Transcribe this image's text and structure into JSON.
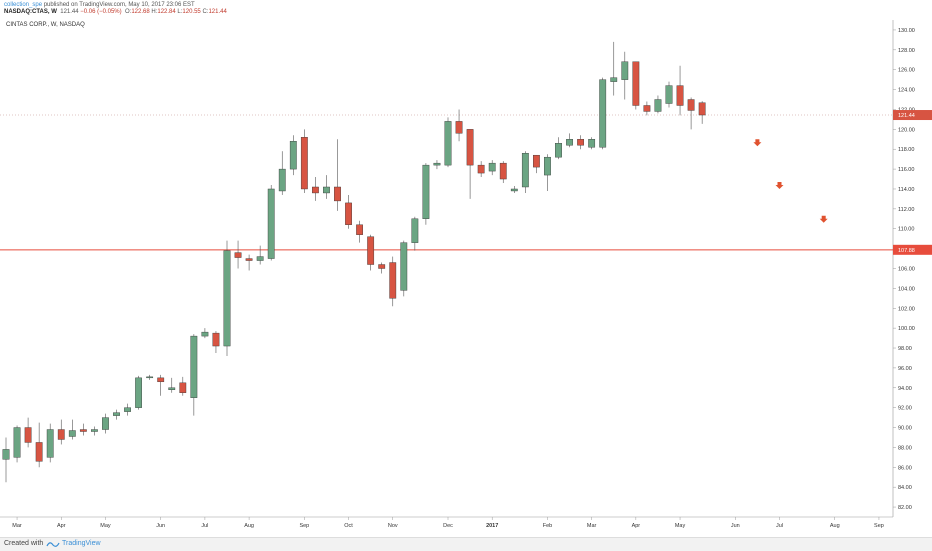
{
  "header": {
    "author": "collection_spe",
    "published": "published on TradingView.com, May 10, 2017 23:06 EST",
    "symbol": "NASDAQ:CTAS, W",
    "last": "121.44",
    "change": "−0.06 (−0.05%)",
    "o_label": "O:",
    "o": "122.68",
    "h_label": "H:",
    "h": "122.84",
    "l_label": "L:",
    "l": "120.55",
    "c_label": "C:",
    "c": "121.44"
  },
  "chart_title": "CINTAS CORP., W, NASDAQ",
  "footer": {
    "created": "Created with",
    "brand": "TradingView"
  },
  "colors": {
    "up": "#6ba583",
    "down": "#d75442",
    "hline": "#e74c3c",
    "priceline": "#d5b4b0",
    "axis": "#999999",
    "arrow": "#e0522f"
  },
  "chart_data": {
    "type": "candlestick",
    "title": "CINTAS CORP., W, NASDAQ",
    "ylim": [
      81.0,
      131.0
    ],
    "y_ticks": [
      "82.00",
      "84.00",
      "86.00",
      "88.00",
      "90.00",
      "92.00",
      "94.00",
      "96.00",
      "98.00",
      "100.00",
      "102.00",
      "104.00",
      "106.00",
      "108.00",
      "110.00",
      "112.00",
      "114.00",
      "116.00",
      "118.00",
      "120.00",
      "122.00",
      "124.00",
      "126.00",
      "128.00",
      "130.00"
    ],
    "x_ticks": [
      {
        "label": "Mar",
        "week": 1
      },
      {
        "label": "Apr",
        "week": 5
      },
      {
        "label": "May",
        "week": 9
      },
      {
        "label": "Jun",
        "week": 14
      },
      {
        "label": "Jul",
        "week": 18
      },
      {
        "label": "Aug",
        "week": 22
      },
      {
        "label": "Sep",
        "week": 27
      },
      {
        "label": "Oct",
        "week": 31
      },
      {
        "label": "Nov",
        "week": 35
      },
      {
        "label": "Dec",
        "week": 40
      },
      {
        "label": "2017",
        "week": 44
      },
      {
        "label": "Feb",
        "week": 49
      },
      {
        "label": "Mar",
        "week": 53
      },
      {
        "label": "Apr",
        "week": 57
      },
      {
        "label": "May",
        "week": 61
      },
      {
        "label": "Jun",
        "week": 66
      },
      {
        "label": "Jul",
        "week": 70
      },
      {
        "label": "Aug",
        "week": 75
      },
      {
        "label": "Sep",
        "week": 79
      }
    ],
    "candles": [
      [
        86.8,
        87.8,
        84.5,
        89.0
      ],
      [
        87.0,
        90.0,
        86.5,
        90.2
      ],
      [
        90.0,
        88.5,
        88.0,
        91.0
      ],
      [
        88.5,
        86.6,
        86.0,
        90.5
      ],
      [
        87.0,
        89.8,
        86.5,
        90.4
      ],
      [
        89.8,
        88.8,
        88.3,
        90.8
      ],
      [
        89.1,
        89.7,
        88.8,
        90.8
      ],
      [
        89.8,
        89.6,
        89.2,
        90.4
      ],
      [
        89.6,
        89.8,
        89.2,
        90.1
      ],
      [
        89.8,
        91.0,
        89.4,
        91.4
      ],
      [
        91.2,
        91.5,
        90.8,
        91.8
      ],
      [
        91.6,
        92.0,
        91.2,
        92.4
      ],
      [
        92.0,
        95.0,
        91.8,
        95.2
      ],
      [
        95.0,
        95.1,
        94.8,
        95.3
      ],
      [
        95.0,
        94.6,
        93.2,
        95.3
      ],
      [
        93.8,
        94.0,
        93.5,
        95.0
      ],
      [
        94.5,
        93.5,
        93.2,
        95.1
      ],
      [
        93.0,
        99.2,
        91.2,
        99.4
      ],
      [
        99.2,
        99.6,
        99.0,
        100.0
      ],
      [
        99.5,
        98.2,
        97.5,
        99.7
      ],
      [
        98.2,
        107.8,
        97.2,
        108.8
      ],
      [
        107.6,
        107.1,
        106.0,
        108.8
      ],
      [
        107.0,
        106.8,
        105.8,
        107.4
      ],
      [
        106.8,
        107.2,
        106.4,
        108.3
      ],
      [
        107.0,
        114.0,
        106.8,
        114.4
      ],
      [
        113.8,
        116.0,
        113.4,
        117.8
      ],
      [
        116.0,
        118.8,
        115.4,
        119.4
      ],
      [
        119.2,
        114.0,
        113.6,
        120.0
      ],
      [
        114.2,
        113.6,
        112.8,
        115.2
      ],
      [
        113.6,
        114.2,
        113.0,
        115.4
      ],
      [
        114.2,
        112.8,
        111.8,
        119.0
      ],
      [
        112.6,
        110.4,
        110.0,
        113.4
      ],
      [
        110.4,
        109.4,
        108.6,
        110.8
      ],
      [
        109.2,
        106.4,
        105.8,
        109.4
      ],
      [
        106.4,
        106.0,
        105.5,
        106.6
      ],
      [
        106.6,
        103.0,
        102.2,
        107.2
      ],
      [
        103.8,
        108.6,
        103.2,
        108.8
      ],
      [
        108.6,
        111.0,
        107.8,
        111.2
      ],
      [
        111.0,
        116.4,
        110.4,
        116.6
      ],
      [
        116.4,
        116.6,
        116.0,
        116.9
      ],
      [
        116.4,
        120.8,
        116.2,
        121.2
      ],
      [
        120.8,
        119.6,
        118.8,
        122.0
      ],
      [
        120.0,
        116.4,
        113.0,
        120.0
      ],
      [
        116.4,
        115.6,
        115.2,
        116.8
      ],
      [
        115.8,
        116.6,
        115.4,
        116.9
      ],
      [
        116.6,
        115.0,
        114.6,
        116.8
      ],
      [
        113.8,
        114.0,
        113.6,
        114.3
      ],
      [
        114.2,
        117.6,
        113.6,
        117.8
      ],
      [
        117.4,
        116.2,
        115.6,
        117.4
      ],
      [
        115.4,
        117.2,
        113.8,
        117.5
      ],
      [
        117.2,
        118.6,
        117.0,
        119.2
      ],
      [
        118.4,
        119.0,
        118.2,
        119.6
      ],
      [
        119.0,
        118.4,
        118.0,
        119.4
      ],
      [
        118.2,
        119.0,
        118.0,
        119.2
      ],
      [
        118.2,
        125.0,
        118.0,
        125.2
      ],
      [
        124.8,
        125.2,
        123.4,
        128.8
      ],
      [
        125.0,
        126.8,
        123.0,
        127.8
      ],
      [
        126.8,
        122.4,
        122.0,
        126.8
      ],
      [
        122.4,
        121.8,
        121.4,
        122.8
      ],
      [
        121.8,
        123.0,
        121.6,
        123.4
      ],
      [
        122.6,
        124.4,
        122.2,
        124.8
      ],
      [
        124.4,
        122.4,
        121.4,
        126.4
      ],
      [
        123.0,
        121.9,
        120.0,
        123.2
      ],
      [
        122.68,
        121.44,
        120.55,
        122.84
      ]
    ],
    "last_price": 121.44,
    "price_label": "121.44",
    "support_level": 107.88,
    "support_label": "107.88",
    "projected_arrows": [
      {
        "week": 68,
        "price": 118.6
      },
      {
        "week": 70,
        "price": 114.3
      },
      {
        "week": 74,
        "price": 110.9
      }
    ]
  }
}
